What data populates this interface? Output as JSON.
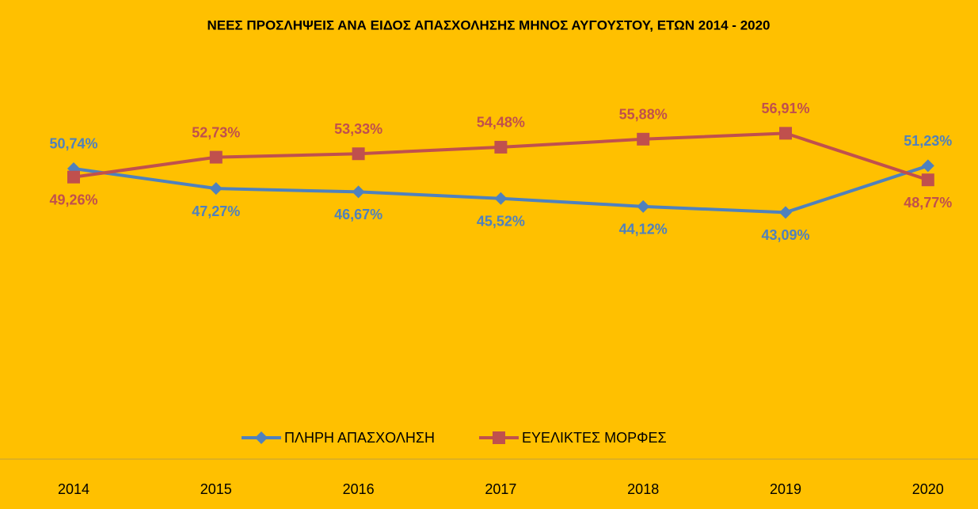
{
  "chart_data": {
    "type": "line",
    "title": "ΝΕΕΣ ΠΡΟΣΛΗΨΕΙΣ ΑΝΑ ΕΙΔΟΣ ΑΠΑΣΧΟΛΗΣΗΣ ΜΗΝΟΣ ΑΥΓΟΥΣΤΟΥ, ΕΤΩΝ 2014 - 2020",
    "categories": [
      "2014",
      "2015",
      "2016",
      "2017",
      "2018",
      "2019",
      "2020"
    ],
    "series": [
      {
        "name": "ΠΛΗΡΗ ΑΠΑΣΧΟΛΗΣΗ",
        "color": "#4f81bd",
        "marker": "diamond",
        "values": [
          50.74,
          47.27,
          46.67,
          45.52,
          44.12,
          43.09,
          51.23
        ],
        "value_labels": [
          "50,74%",
          "47,27%",
          "46,67%",
          "45,52%",
          "44,12%",
          "43,09%",
          "51,23%"
        ]
      },
      {
        "name": "ΕΥΕΛΙΚΤΕΣ ΜΟΡΦΕΣ",
        "color": "#c0504d",
        "marker": "square",
        "values": [
          49.26,
          52.73,
          53.33,
          54.48,
          55.88,
          56.91,
          48.77
        ],
        "value_labels": [
          "49,26%",
          "52,73%",
          "53,33%",
          "54,48%",
          "55,88%",
          "56,91%",
          "48,77%"
        ]
      }
    ],
    "ylim": [
      0,
      60
    ]
  }
}
